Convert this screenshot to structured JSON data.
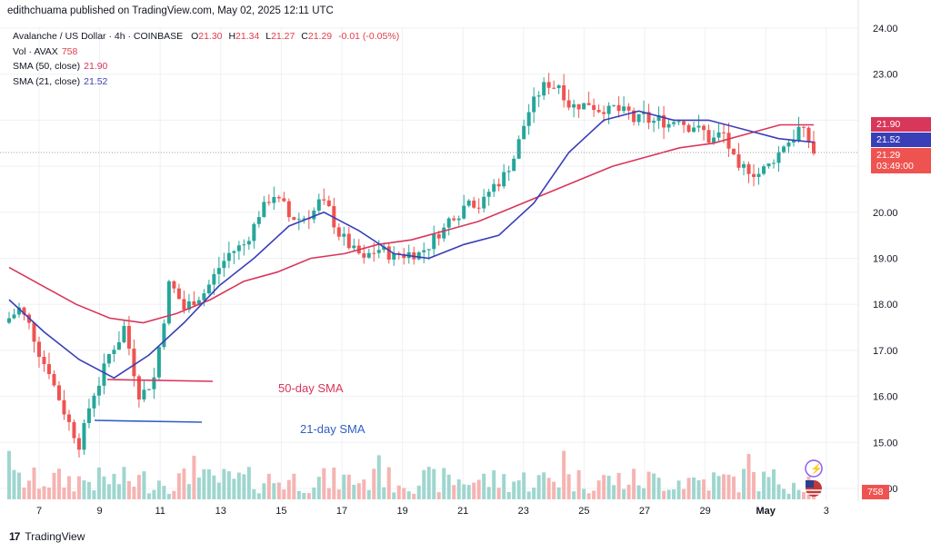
{
  "header": {
    "publisher_line": "edithchuama published on TradingView.com, May 02, 2025 12:11 UTC"
  },
  "legend": {
    "symbol": "Avalanche / US Dollar · 4h · COINBASE",
    "ohlc": {
      "o_label": "O",
      "o": "21.30",
      "h_label": "H",
      "h": "21.34",
      "l_label": "L",
      "l": "21.27",
      "c_label": "C",
      "c": "21.29",
      "change": "-0.01 (-0.05%)"
    },
    "vol_label": "Vol · AVAX",
    "vol_value": "758",
    "sma50_label": "SMA (50, close)",
    "sma50_value": "21.90",
    "sma21_label": "SMA (21, close)",
    "sma21_value": "21.52"
  },
  "price_badges": {
    "sma50": "21.90",
    "sma21": "21.52",
    "last": "21.29",
    "countdown": "03:49:00",
    "volume": "758"
  },
  "annotations": {
    "sma50_note": "50-day SMA",
    "sma21_note": "21-day SMA"
  },
  "footer": {
    "brand": "TradingView"
  },
  "colors": {
    "up": "#26a69a",
    "down": "#ef5350",
    "sma50": "#d8365a",
    "sma21": "#3a3fb8",
    "grid": "#eef0f3"
  },
  "icons": {
    "logo": "tradingview-logo-icon",
    "ideas": "lightning-icon",
    "flag": "us-flag-icon"
  },
  "chart_data": {
    "type": "candlestick",
    "title": "",
    "y_ticks": [
      "24.00",
      "23.00",
      "22.00",
      "21.00",
      "20.00",
      "19.00",
      "18.00",
      "17.00",
      "16.00",
      "15.00",
      "14.00"
    ],
    "ylim": [
      14.0,
      24.0
    ],
    "x_ticks": [
      "7",
      "9",
      "11",
      "13",
      "15",
      "17",
      "19",
      "21",
      "23",
      "25",
      "27",
      "29",
      "May",
      "3"
    ],
    "candles_close": [
      17.9,
      17.3,
      16.6,
      15.7,
      15.0,
      16.1,
      16.9,
      17.5,
      16.1,
      16.4,
      18.4,
      17.9,
      18.2,
      18.6,
      19.1,
      19.3,
      20.0,
      20.4,
      19.9,
      19.9,
      20.2,
      19.8,
      19.3,
      18.9,
      19.2,
      19.0,
      19.1,
      19.2,
      19.6,
      20.0,
      20.4,
      20.2,
      20.7,
      21.2,
      22.2,
      22.7,
      22.8,
      22.3,
      22.4,
      22.3,
      22.2,
      22.0,
      22.0,
      22.0,
      22.1,
      21.9,
      21.6,
      21.7,
      20.8,
      20.9,
      21.0,
      21.5,
      21.8,
      21.3
    ],
    "series": [
      {
        "name": "SMA (50, close)",
        "values": [
          18.8,
          18.4,
          18.0,
          17.7,
          17.6,
          17.8,
          18.1,
          18.5,
          18.7,
          19.0,
          19.1,
          19.3,
          19.4,
          19.6,
          19.8,
          20.1,
          20.4,
          20.7,
          21.0,
          21.2,
          21.4,
          21.5,
          21.7,
          21.9,
          21.9
        ]
      },
      {
        "name": "SMA (21, close)",
        "values": [
          18.1,
          17.4,
          16.8,
          16.4,
          16.9,
          17.6,
          18.4,
          19.0,
          19.7,
          20.0,
          19.6,
          19.1,
          19.0,
          19.3,
          19.5,
          20.2,
          21.3,
          22.0,
          22.2,
          22.0,
          22.0,
          21.8,
          21.6,
          21.52
        ]
      }
    ]
  }
}
